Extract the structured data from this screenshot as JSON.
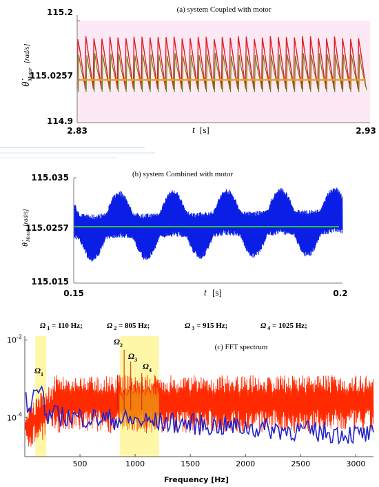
{
  "chart_data": [
    {
      "type": "line",
      "title": "(a) system Coupled with motor",
      "ylabel_main": "θ̇",
      "ylabel_sub": "Motor",
      "ylabel_unit": "[rad/s]",
      "xlabel_var": "t",
      "xlabel_unit": "[s]",
      "xlim": [
        2.83,
        2.93
      ],
      "ylim": [
        114.9,
        115.2
      ],
      "xtick_labels": [
        "2.83",
        "2.93"
      ],
      "ytick_labels": [
        "115.2",
        "115.0257",
        "114.9"
      ],
      "ytick_values": [
        115.2,
        115.0257,
        114.9
      ],
      "series": [
        {
          "color": "#dd1f1f",
          "pattern": "sawtooth",
          "cycles": 36,
          "low": 115.0,
          "high": 115.15
        },
        {
          "color": "#6a7a12",
          "pattern": "sawtooth",
          "cycles": 36,
          "low": 114.99,
          "high": 115.1
        },
        {
          "color": "#e8a020",
          "pattern": "constant",
          "value": 115.0257
        }
      ]
    },
    {
      "type": "line",
      "title": "(b) system Combined with motor",
      "ylabel_main": "θ̇",
      "ylabel_sub": "Motor",
      "ylabel_unit": "[rad/s]",
      "xlabel_var": "t",
      "xlabel_unit": "[s]",
      "xlim": [
        0.15,
        0.2
      ],
      "ylim": [
        115.015,
        115.035
      ],
      "xtick_labels": [
        "0.15",
        "0.2"
      ],
      "ytick_labels": [
        "115.035",
        "115.0257",
        "115.015"
      ],
      "ytick_values": [
        115.035,
        115.0257,
        115.015
      ],
      "series": [
        {
          "color": "#0a1ee6",
          "pattern": "noisy-envelope",
          "center": 115.0257,
          "amplitude": 0.0045,
          "peaks_t": [
            0.1585,
            0.1685,
            0.1785,
            0.1885,
            0.1985
          ]
        },
        {
          "color": "#33cc33",
          "pattern": "constant",
          "value": 115.0257
        }
      ]
    },
    {
      "type": "line",
      "title": "(c) FFT spectrum",
      "xlabel": "Frequency [Hz]",
      "yscale": "log",
      "xlim": [
        0,
        3160
      ],
      "ylim_exp": [
        -5,
        -1.9
      ],
      "xticks": [
        500,
        1000,
        1500,
        2000,
        2500,
        3000
      ],
      "xtick_labels": [
        "500",
        "1000",
        "1500",
        "2000",
        "2500",
        "3000"
      ],
      "ytick_labels": [
        {
          "base": "10",
          "exp": "-2"
        },
        {
          "base": "10",
          "exp": "-4"
        }
      ],
      "ytick_exp": [
        -2,
        -4
      ],
      "highlight_bands": [
        [
          95,
          195
        ],
        [
          860,
          1215
        ]
      ],
      "highlight_color": "#fff7a8",
      "frequencies_header": [
        {
          "symbol": "Ω",
          "sub": "1",
          "text": " = 110 Hz;"
        },
        {
          "symbol": "Ω",
          "sub": "2",
          "text": " = 805 Hz;"
        },
        {
          "symbol": "Ω",
          "sub": "3",
          "text": " = 915 Hz;"
        },
        {
          "symbol": "Ω",
          "sub": "4",
          "text": " = 1025 Hz;"
        }
      ],
      "peak_labels": [
        {
          "symbol": "Ω",
          "sub": "1",
          "f": 110,
          "exp": -3.3
        },
        {
          "symbol": "Ω",
          "sub": "2",
          "f": 900,
          "exp": -2.3
        },
        {
          "symbol": "Ω",
          "sub": "3",
          "f": 960,
          "exp": -2.7
        },
        {
          "symbol": "Ω",
          "sub": "4",
          "f": 1060,
          "exp": -3.0
        }
      ],
      "series": [
        {
          "color": "#ff2a00",
          "pattern": "noisy-band",
          "low_exp": -4.4,
          "high_exp": -2.9
        },
        {
          "color": "#f08a10",
          "pattern": "noisy-band-in-highlight",
          "low_exp": -4.3,
          "high_exp": -3.2
        },
        {
          "color": "#2222cc",
          "pattern": "decaying-noise",
          "start_exp": -3.55,
          "end_exp": -4.5
        }
      ]
    }
  ]
}
